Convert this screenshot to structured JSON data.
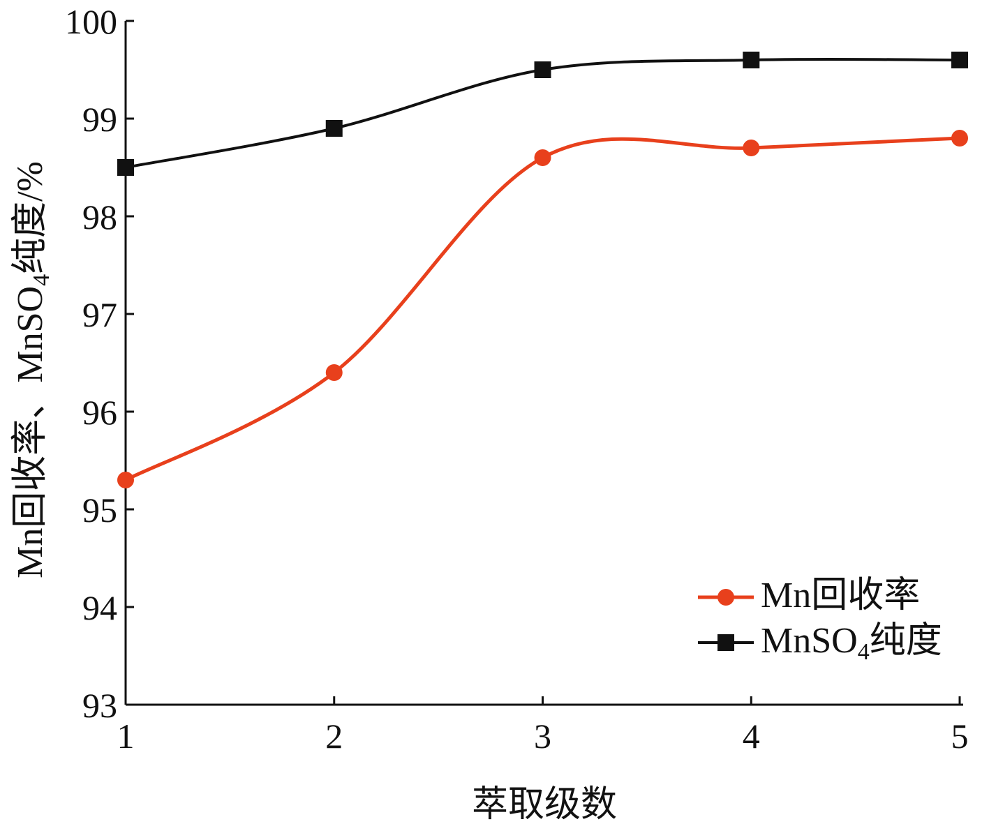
{
  "chart_data": {
    "type": "line",
    "xlabel": "萃取级数",
    "ylabel": {
      "prefix": "Mn回收率、MnSO",
      "subscript": "4",
      "suffix": "纯度/%"
    },
    "x": [
      1,
      2,
      3,
      4,
      5
    ],
    "x_ticks": [
      "1",
      "2",
      "3",
      "4",
      "5"
    ],
    "y_ticks": [
      "93",
      "94",
      "95",
      "96",
      "97",
      "98",
      "99",
      "100"
    ],
    "xlim": [
      1,
      5
    ],
    "ylim": [
      93,
      100
    ],
    "grid": false,
    "legend_position": "bottom-right",
    "series": [
      {
        "id": "mn-recovery",
        "name": "Mn回收率",
        "legend": {
          "prefix": "Mn回收率",
          "subscript": "",
          "suffix": ""
        },
        "values": [
          95.3,
          96.4,
          98.6,
          98.7,
          98.8
        ],
        "color": "#e8401c",
        "marker": "circle"
      },
      {
        "id": "mnso4-purity",
        "name": "MnSO4纯度",
        "legend": {
          "prefix": "MnSO",
          "subscript": "4",
          "suffix": "纯度"
        },
        "values": [
          98.5,
          98.9,
          99.5,
          99.6,
          99.6
        ],
        "color": "#111111",
        "marker": "square"
      }
    ]
  }
}
